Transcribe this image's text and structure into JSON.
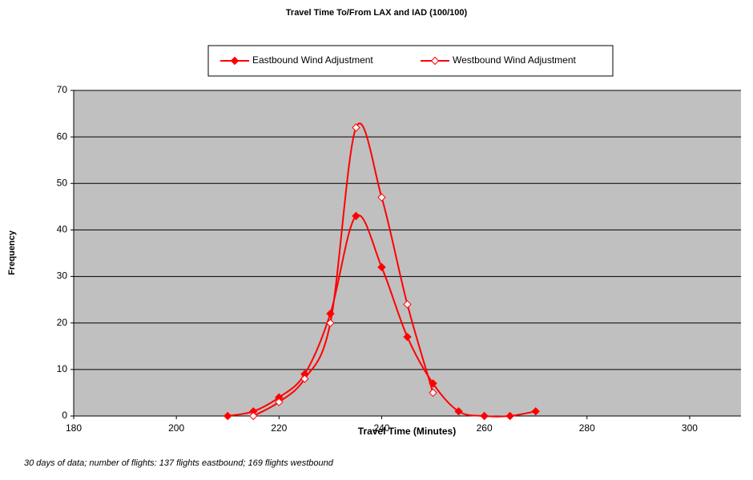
{
  "chart_data": {
    "type": "line",
    "smooth": true,
    "title": "Travel Time To/From LAX and IAD (100/100)",
    "x_label": "Travel Time (Minutes)",
    "y_label": "Frequency",
    "note": "30 days of data; number of flights: 137 flights eastbound; 169 flights westbound",
    "xlim": [
      180,
      310
    ],
    "xticks": [
      180,
      200,
      220,
      240,
      260,
      280,
      300
    ],
    "ylim": [
      0,
      70
    ],
    "yticks": [
      0,
      10,
      20,
      30,
      40,
      50,
      60,
      70
    ],
    "grid": true,
    "plot_background": "#c0c0c0",
    "legend": "top",
    "series": [
      {
        "name": "Eastbound Wind Adjustment",
        "color": "#ff0000",
        "marker": "filled",
        "x": [
          210,
          215,
          220,
          225,
          230,
          235,
          240,
          245,
          250,
          255,
          260,
          265,
          270
        ],
        "values": [
          0,
          1,
          4,
          9,
          22,
          43,
          32,
          17,
          7,
          1,
          0,
          0,
          1
        ]
      },
      {
        "name": "Westbound Wind Adjustment",
        "color": "#ff0000",
        "marker": "hollow",
        "x": [
          215,
          220,
          225,
          230,
          235,
          240,
          245,
          250
        ],
        "values": [
          0,
          3,
          8,
          20,
          62,
          47,
          24,
          5
        ]
      }
    ]
  }
}
